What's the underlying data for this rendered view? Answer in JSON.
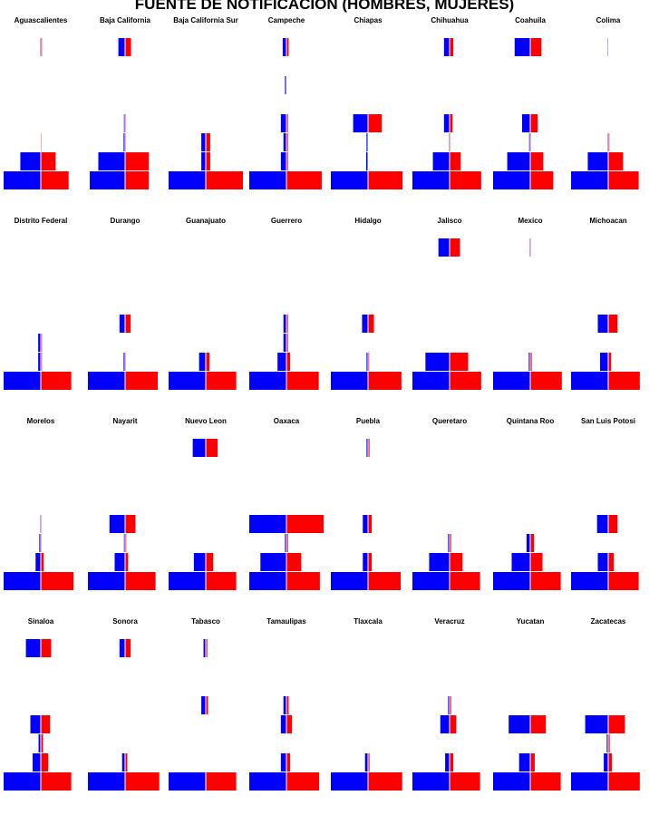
{
  "title": "FUENTE DE NOTIFICACION (HOMBRES, MUJERES)",
  "colors": {
    "male": "#0000ff",
    "female": "#ff0000",
    "background": "#ffffff",
    "separator": "#ffffff"
  },
  "chart_data": {
    "type": "bar",
    "title": "FUENTE DE NOTIFICACION (HOMBRES, MUJERES)",
    "layout": "small multiples, 4 rows x 8 columns, back-to-back horizontal bars (left = Hombres, right = Mujeres)",
    "levels": 8,
    "xlim": [
      -100,
      100
    ],
    "panels": [
      {
        "name": "Aguascalientes",
        "male": [
          100,
          55,
          0,
          0,
          0,
          0,
          0,
          2
        ],
        "female": [
          75,
          40,
          2,
          0,
          0,
          0,
          0,
          3
        ]
      },
      {
        "name": "Baja California",
        "male": [
          95,
          72,
          4,
          3,
          0,
          0,
          0,
          18
        ],
        "female": [
          64,
          64,
          2,
          2,
          0,
          0,
          0,
          16
        ]
      },
      {
        "name": "Baja California Sur",
        "male": [
          100,
          12,
          12,
          0,
          0,
          0,
          0,
          0
        ],
        "female": [
          100,
          12,
          12,
          0,
          0,
          0,
          0,
          0
        ]
      },
      {
        "name": "Campeche",
        "male": [
          100,
          15,
          8,
          15,
          0,
          4,
          0,
          10
        ],
        "female": [
          95,
          4,
          4,
          4,
          0,
          1,
          0,
          6
        ]
      },
      {
        "name": "Chiapas",
        "male": [
          100,
          5,
          4,
          40,
          0,
          0,
          0,
          0
        ],
        "female": [
          93,
          1,
          1,
          37,
          0,
          0,
          0,
          0
        ]
      },
      {
        "name": "Chihuahua",
        "male": [
          100,
          45,
          2,
          15,
          0,
          0,
          0,
          15
        ],
        "female": [
          85,
          30,
          2,
          8,
          0,
          0,
          0,
          10
        ]
      },
      {
        "name": "Coahuila",
        "male": [
          100,
          62,
          3,
          22,
          0,
          0,
          0,
          42
        ],
        "female": [
          62,
          35,
          2,
          20,
          0,
          0,
          0,
          30
        ]
      },
      {
        "name": "Colima",
        "male": [
          100,
          55,
          2,
          0,
          0,
          0,
          0,
          2
        ],
        "female": [
          82,
          40,
          3,
          0,
          0,
          0,
          0,
          1
        ]
      },
      {
        "name": "Distrito Federal",
        "male": [
          100,
          7,
          7,
          0,
          0,
          0,
          0,
          0
        ],
        "female": [
          82,
          3,
          3,
          0,
          0,
          0,
          0,
          0
        ]
      },
      {
        "name": "Durango",
        "male": [
          100,
          4,
          0,
          15,
          0,
          0,
          0,
          0
        ],
        "female": [
          88,
          2,
          0,
          15,
          0,
          0,
          0,
          0
        ]
      },
      {
        "name": "Guanajuato",
        "male": [
          100,
          18,
          0,
          0,
          0,
          0,
          0,
          0
        ],
        "female": [
          82,
          10,
          0,
          0,
          0,
          0,
          0,
          0
        ]
      },
      {
        "name": "Guerrero",
        "male": [
          100,
          24,
          8,
          8,
          0,
          0,
          0,
          0
        ],
        "female": [
          87,
          10,
          4,
          4,
          0,
          0,
          0,
          0
        ]
      },
      {
        "name": "Hidalgo",
        "male": [
          100,
          4,
          0,
          16,
          0,
          0,
          0,
          0
        ],
        "female": [
          90,
          3,
          0,
          16,
          0,
          0,
          0,
          0
        ]
      },
      {
        "name": "Jalisco",
        "male": [
          100,
          65,
          0,
          0,
          0,
          0,
          0,
          30
        ],
        "female": [
          85,
          50,
          0,
          0,
          0,
          0,
          0,
          28
        ]
      },
      {
        "name": "Mexico",
        "male": [
          100,
          4,
          0,
          0,
          0,
          0,
          0,
          2
        ],
        "female": [
          85,
          4,
          0,
          0,
          0,
          0,
          0,
          2
        ]
      },
      {
        "name": "Michoacan",
        "male": [
          100,
          22,
          0,
          28,
          0,
          0,
          0,
          0
        ],
        "female": [
          85,
          8,
          0,
          25,
          0,
          0,
          0,
          0
        ]
      },
      {
        "name": "Morelos",
        "male": [
          100,
          14,
          4,
          2,
          0,
          0,
          0,
          0
        ],
        "female": [
          88,
          8,
          2,
          2,
          0,
          0,
          0,
          0
        ]
      },
      {
        "name": "Nayarit",
        "male": [
          100,
          28,
          3,
          42,
          0,
          0,
          0,
          0
        ],
        "female": [
          82,
          8,
          3,
          28,
          0,
          0,
          0,
          0
        ]
      },
      {
        "name": "Nuevo Leon",
        "male": [
          100,
          32,
          0,
          0,
          0,
          0,
          0,
          35
        ],
        "female": [
          82,
          20,
          0,
          0,
          0,
          0,
          0,
          32
        ]
      },
      {
        "name": "Oaxaca",
        "male": [
          100,
          70,
          4,
          100,
          0,
          0,
          0,
          0
        ],
        "female": [
          90,
          40,
          4,
          100,
          0,
          0,
          0,
          0
        ]
      },
      {
        "name": "Puebla",
        "male": [
          100,
          14,
          0,
          14,
          0,
          0,
          0,
          4
        ],
        "female": [
          88,
          10,
          0,
          10,
          0,
          0,
          0,
          4
        ]
      },
      {
        "name": "Queretaro",
        "male": [
          100,
          55,
          4,
          0,
          0,
          0,
          0,
          0
        ],
        "female": [
          82,
          35,
          4,
          0,
          0,
          0,
          0,
          0
        ]
      },
      {
        "name": "Quintana Roo",
        "male": [
          100,
          50,
          10,
          0,
          0,
          0,
          0,
          0
        ],
        "female": [
          82,
          33,
          10,
          0,
          0,
          0,
          0,
          0
        ]
      },
      {
        "name": "San Luis Potosi",
        "male": [
          100,
          28,
          0,
          30,
          0,
          0,
          0,
          0
        ],
        "female": [
          82,
          15,
          0,
          25,
          0,
          0,
          0,
          0
        ]
      },
      {
        "name": "Sinaloa",
        "male": [
          100,
          22,
          6,
          28,
          0,
          0,
          0,
          40
        ],
        "female": [
          82,
          20,
          6,
          25,
          0,
          0,
          0,
          28
        ]
      },
      {
        "name": "Sonora",
        "male": [
          100,
          8,
          0,
          0,
          0,
          0,
          0,
          15
        ],
        "female": [
          92,
          6,
          0,
          0,
          0,
          0,
          0,
          15
        ]
      },
      {
        "name": "Tabasco",
        "male": [
          100,
          0,
          0,
          0,
          12,
          0,
          0,
          6
        ],
        "female": [
          82,
          0,
          0,
          0,
          6,
          0,
          0,
          4
        ]
      },
      {
        "name": "Tamaulipas",
        "male": [
          100,
          15,
          0,
          15,
          8,
          0,
          0,
          0
        ],
        "female": [
          88,
          10,
          0,
          15,
          6,
          0,
          0,
          0
        ]
      },
      {
        "name": "Tlaxcala",
        "male": [
          100,
          8,
          0,
          0,
          0,
          0,
          0,
          0
        ],
        "female": [
          92,
          4,
          0,
          0,
          0,
          0,
          0,
          0
        ]
      },
      {
        "name": "Veracruz",
        "male": [
          100,
          12,
          0,
          25,
          4,
          0,
          0,
          0
        ],
        "female": [
          82,
          10,
          0,
          18,
          4,
          0,
          0,
          0
        ]
      },
      {
        "name": "Yucatan",
        "male": [
          100,
          30,
          0,
          58,
          0,
          0,
          0,
          0
        ],
        "female": [
          82,
          12,
          0,
          42,
          0,
          0,
          0,
          0
        ]
      },
      {
        "name": "Zacatecas",
        "male": [
          100,
          12,
          4,
          62,
          0,
          0,
          0,
          0
        ],
        "female": [
          85,
          10,
          4,
          45,
          0,
          0,
          0,
          0
        ]
      }
    ]
  }
}
